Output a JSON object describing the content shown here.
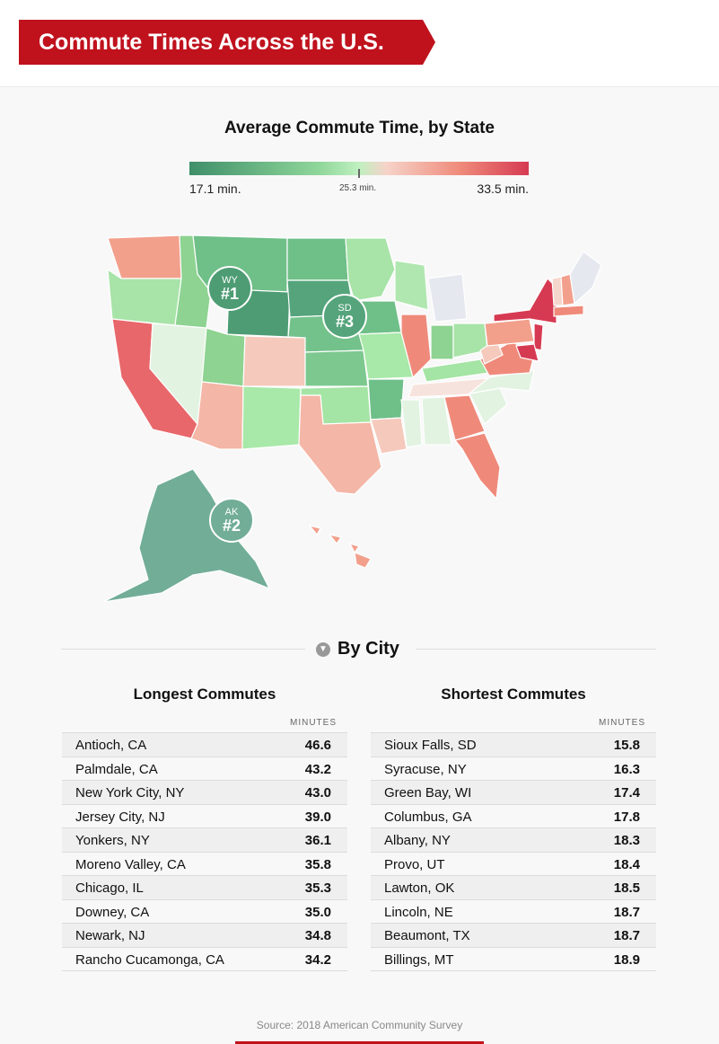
{
  "header": {
    "title": "Commute Times Across the U.S.",
    "banner_color": "#c0121d"
  },
  "map": {
    "title": "Average Commute Time, by State",
    "legend": {
      "min": "17.1 min.",
      "mid": "25.3 min.",
      "max": "33.5 min."
    },
    "colors": {
      "fastest": "#3f8f69",
      "fast": "#8fd69a",
      "neutral": "#e8f5e6",
      "slow": "#f2b3a3",
      "slowest": "#d63a52"
    },
    "badges": [
      {
        "state": "WY",
        "rank": "#1"
      },
      {
        "state": "AK",
        "rank": "#2"
      },
      {
        "state": "SD",
        "rank": "#3"
      }
    ]
  },
  "by_city": {
    "heading": "By City",
    "longest": {
      "title": "Longest Commutes",
      "unit": "MINUTES",
      "rows": [
        {
          "city": "Antioch, CA",
          "minutes": "46.6"
        },
        {
          "city": "Palmdale, CA",
          "minutes": "43.2"
        },
        {
          "city": "New York City, NY",
          "minutes": "43.0"
        },
        {
          "city": "Jersey City, NJ",
          "minutes": "39.0"
        },
        {
          "city": "Yonkers, NY",
          "minutes": "36.1"
        },
        {
          "city": "Moreno Valley, CA",
          "minutes": "35.8"
        },
        {
          "city": "Chicago, IL",
          "minutes": "35.3"
        },
        {
          "city": "Downey, CA",
          "minutes": "35.0"
        },
        {
          "city": "Newark, NJ",
          "minutes": "34.8"
        },
        {
          "city": "Rancho Cucamonga, CA",
          "minutes": "34.2"
        }
      ]
    },
    "shortest": {
      "title": "Shortest Commutes",
      "unit": "MINUTES",
      "rows": [
        {
          "city": "Sioux Falls, SD",
          "minutes": "15.8"
        },
        {
          "city": "Syracuse, NY",
          "minutes": "16.3"
        },
        {
          "city": "Green Bay, WI",
          "minutes": "17.4"
        },
        {
          "city": "Columbus, GA",
          "minutes": "17.8"
        },
        {
          "city": "Albany, NY",
          "minutes": "18.3"
        },
        {
          "city": "Provo, UT",
          "minutes": "18.4"
        },
        {
          "city": "Lawton, OK",
          "minutes": "18.5"
        },
        {
          "city": "Lincoln, NE",
          "minutes": "18.7"
        },
        {
          "city": "Beaumont, TX",
          "minutes": "18.7"
        },
        {
          "city": "Billings, MT",
          "minutes": "18.9"
        }
      ]
    }
  },
  "source": "Source: 2018 American Community Survey"
}
